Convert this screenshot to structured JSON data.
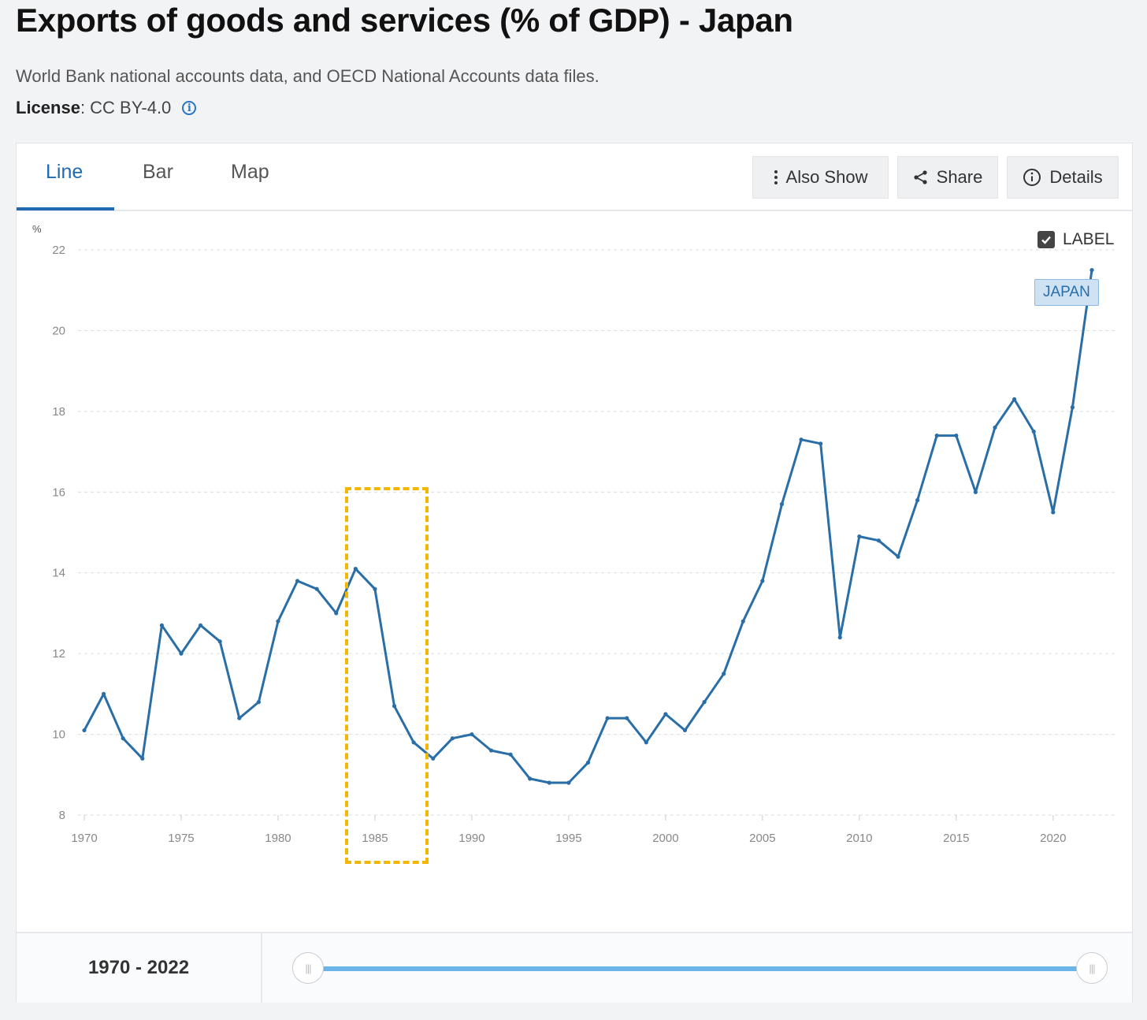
{
  "header": {
    "title": "Exports of goods and services (% of GDP) - Japan",
    "source": "World Bank national accounts data, and OECD National Accounts data files.",
    "license_label": "License",
    "license_value": " : CC BY-4.0"
  },
  "tabs": [
    {
      "label": "Line",
      "active": true
    },
    {
      "label": "Bar",
      "active": false
    },
    {
      "label": "Map",
      "active": false
    }
  ],
  "toolbar": {
    "also_show": "Also Show",
    "share": "Share",
    "details": "Details"
  },
  "label_toggle": {
    "text": "LABEL",
    "checked": true
  },
  "series_label": "JAPAN",
  "range": {
    "text": "1970 - 2022",
    "start": 1970,
    "end": 2022
  },
  "colors": {
    "line": "#2a6ea8",
    "accent": "#1f6ab3",
    "highlight": "#f2b705",
    "slider": "#6ab4ea"
  },
  "chart_data": {
    "type": "line",
    "unit_label": "%",
    "ylim": [
      8,
      22
    ],
    "yticks": [
      8,
      10,
      12,
      14,
      16,
      18,
      20,
      22
    ],
    "xlim": [
      1970,
      2022
    ],
    "xticks": [
      1970,
      1975,
      1980,
      1985,
      1990,
      1995,
      2000,
      2005,
      2010,
      2015,
      2020
    ],
    "grid": true,
    "series": [
      {
        "name": "JAPAN",
        "x": [
          1970,
          1971,
          1972,
          1973,
          1974,
          1975,
          1976,
          1977,
          1978,
          1979,
          1980,
          1981,
          1982,
          1983,
          1984,
          1985,
          1986,
          1987,
          1988,
          1989,
          1990,
          1991,
          1992,
          1993,
          1994,
          1995,
          1996,
          1997,
          1998,
          1999,
          2000,
          2001,
          2002,
          2003,
          2004,
          2005,
          2006,
          2007,
          2008,
          2009,
          2010,
          2011,
          2012,
          2013,
          2014,
          2015,
          2016,
          2017,
          2018,
          2019,
          2020,
          2021,
          2022
        ],
        "values": [
          10.1,
          11.0,
          9.9,
          9.4,
          12.7,
          12.0,
          12.7,
          12.3,
          10.4,
          10.8,
          12.8,
          13.8,
          13.6,
          13.0,
          14.1,
          13.6,
          10.7,
          9.8,
          9.4,
          9.9,
          10.0,
          9.6,
          9.5,
          8.9,
          8.8,
          8.8,
          9.3,
          10.4,
          10.4,
          9.8,
          10.5,
          10.1,
          10.8,
          11.5,
          12.8,
          13.8,
          15.7,
          17.3,
          17.2,
          12.4,
          14.9,
          14.8,
          14.4,
          15.8,
          17.4,
          17.4,
          16.0,
          17.6,
          18.3,
          17.5,
          15.5,
          18.1,
          21.5
        ]
      }
    ]
  }
}
